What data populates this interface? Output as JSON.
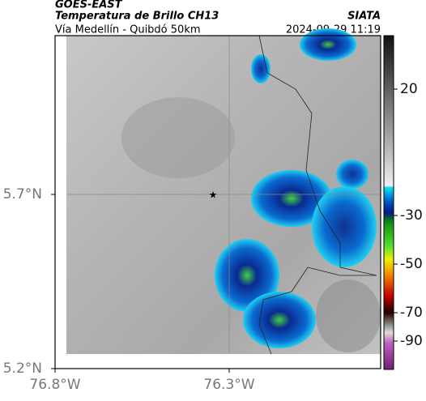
{
  "header": {
    "source": "GOES-EAST",
    "product": "Temperatura de Brillo CH13",
    "organization": "SIATA",
    "region": "Vía Medellín - Quibdó 50km",
    "timestamp": "2024-09-29 11:19"
  },
  "map": {
    "lat_ticks": [
      "5.7°N",
      "5.2°N"
    ],
    "lon_ticks": [
      "76.8°W",
      "76.3°W"
    ]
  },
  "colorbar": {
    "ticks": [
      "20",
      "-30",
      "-50",
      "-70",
      "-90"
    ]
  }
}
